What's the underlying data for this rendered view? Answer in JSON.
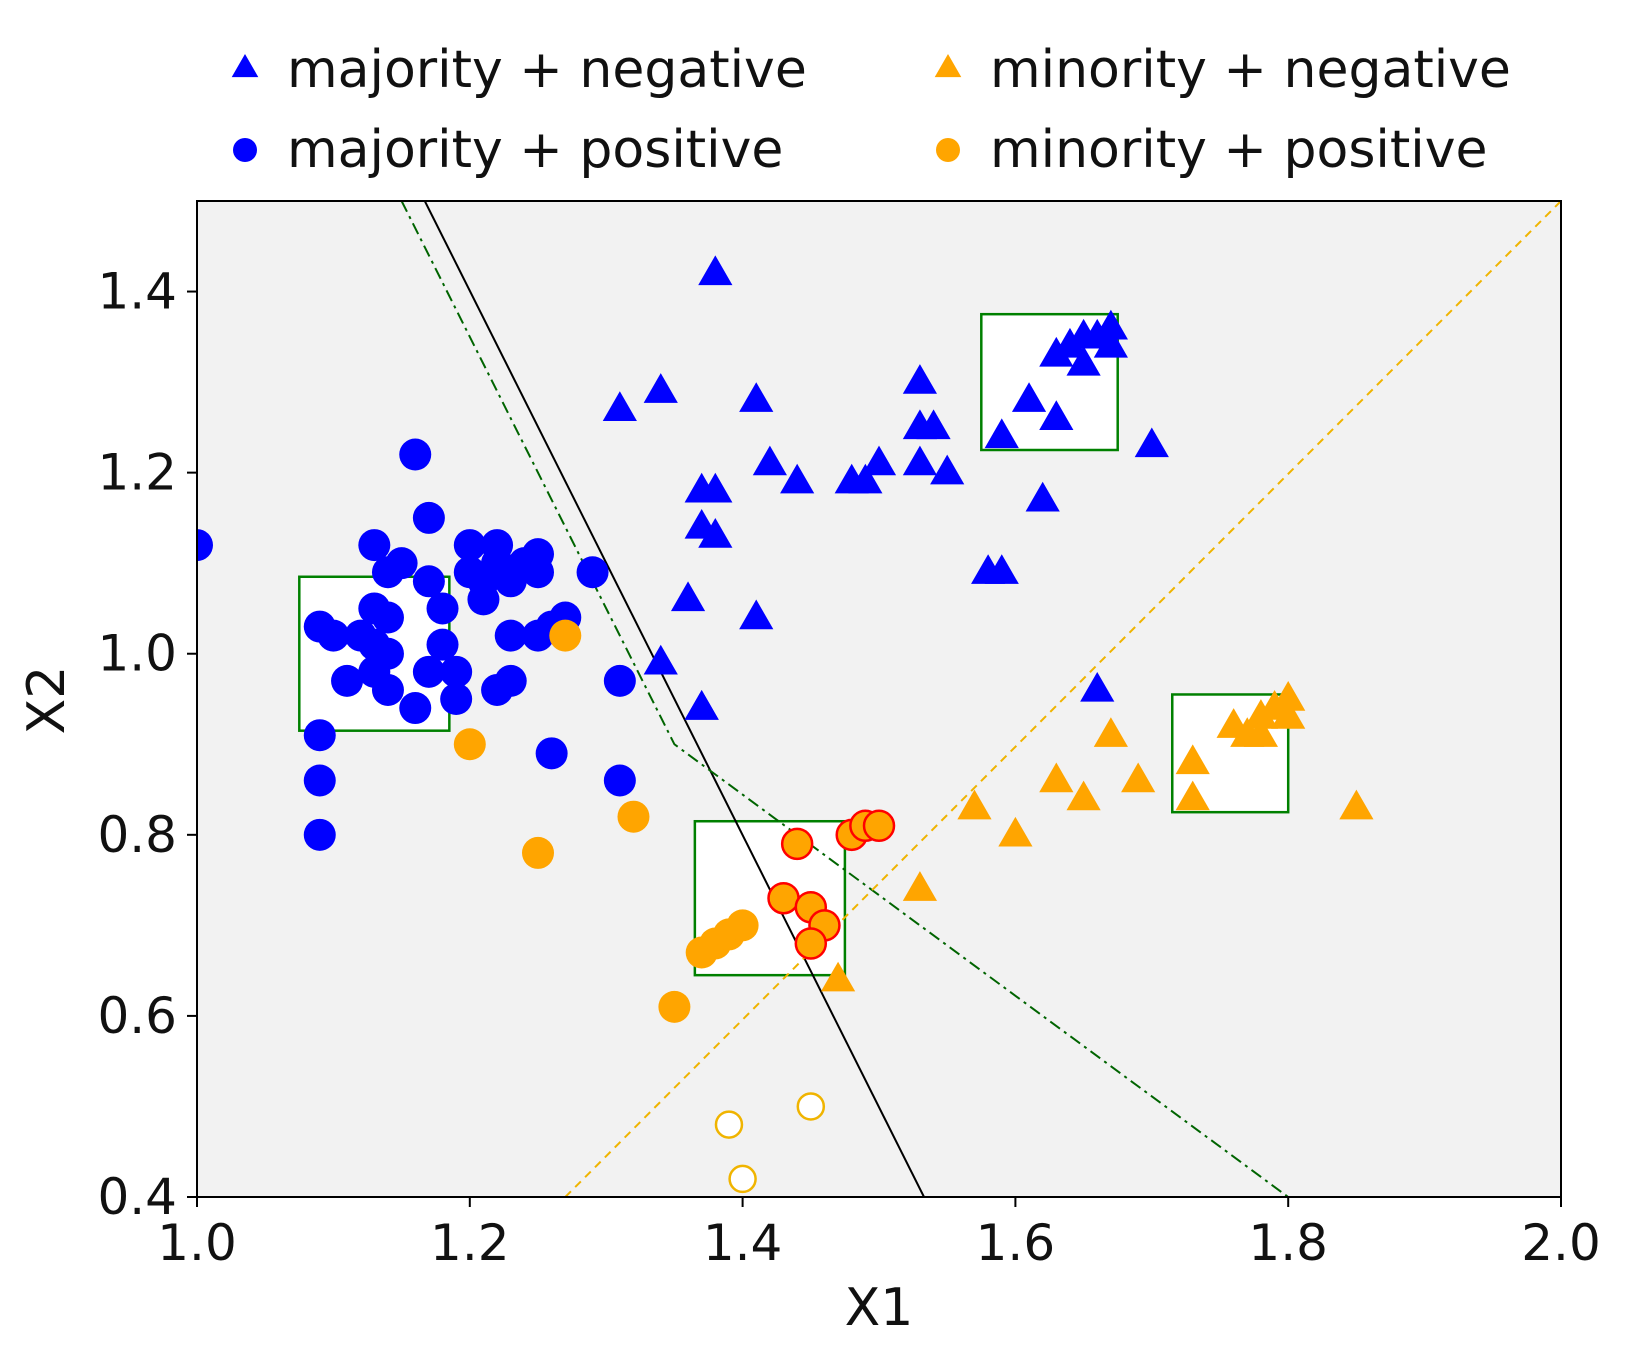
{
  "chart_data": {
    "type": "scatter",
    "title": "",
    "xlabel": "X1",
    "ylabel": "X2",
    "xlim": [
      1.0,
      2.0
    ],
    "ylim": [
      0.4,
      1.5
    ],
    "xticks": [
      "1.0",
      "1.2",
      "1.4",
      "1.6",
      "1.8",
      "2.0"
    ],
    "yticks": [
      "0.4",
      "0.6",
      "0.8",
      "1.0",
      "1.2",
      "1.4"
    ],
    "legend_position": "top",
    "colors": {
      "majority": "#0000ff",
      "minority": "#ffa500",
      "highlight_edge": "#ff0000",
      "box": "#008000",
      "solid_boundary": "#000000",
      "dashdot_boundary": "#006400",
      "dashed_boundary": "#f0b400",
      "plot_background": "#f2f2f2"
    },
    "series": [
      {
        "name": "majority + negative",
        "marker": "triangle",
        "color": "#0000ff",
        "points": [
          [
            1.38,
            1.42
          ],
          [
            1.31,
            1.27
          ],
          [
            1.34,
            1.29
          ],
          [
            1.41,
            1.28
          ],
          [
            1.42,
            1.21
          ],
          [
            1.44,
            1.19
          ],
          [
            1.37,
            1.18
          ],
          [
            1.38,
            1.18
          ],
          [
            1.37,
            1.14
          ],
          [
            1.38,
            1.13
          ],
          [
            1.36,
            1.06
          ],
          [
            1.41,
            1.04
          ],
          [
            1.34,
            0.99
          ],
          [
            1.37,
            0.94
          ],
          [
            1.37,
            0.94
          ],
          [
            1.48,
            1.19
          ],
          [
            1.49,
            1.19
          ],
          [
            1.5,
            1.21
          ],
          [
            1.53,
            1.3
          ],
          [
            1.53,
            1.25
          ],
          [
            1.54,
            1.25
          ],
          [
            1.53,
            1.21
          ],
          [
            1.55,
            1.2
          ],
          [
            1.59,
            1.24
          ],
          [
            1.61,
            1.28
          ],
          [
            1.63,
            1.26
          ],
          [
            1.62,
            1.17
          ],
          [
            1.58,
            1.09
          ],
          [
            1.59,
            1.09
          ],
          [
            1.63,
            1.33
          ],
          [
            1.64,
            1.34
          ],
          [
            1.65,
            1.35
          ],
          [
            1.66,
            1.35
          ],
          [
            1.67,
            1.34
          ],
          [
            1.67,
            1.36
          ],
          [
            1.65,
            1.32
          ],
          [
            1.7,
            1.23
          ],
          [
            1.66,
            0.96
          ]
        ]
      },
      {
        "name": "majority + positive",
        "marker": "circle",
        "color": "#0000ff",
        "points": [
          [
            1.0,
            1.12
          ],
          [
            1.16,
            1.22
          ],
          [
            1.17,
            1.15
          ],
          [
            1.13,
            1.12
          ],
          [
            1.14,
            1.09
          ],
          [
            1.15,
            1.1
          ],
          [
            1.17,
            1.08
          ],
          [
            1.18,
            1.05
          ],
          [
            1.09,
            1.03
          ],
          [
            1.1,
            1.02
          ],
          [
            1.12,
            1.02
          ],
          [
            1.13,
            1.05
          ],
          [
            1.14,
            1.04
          ],
          [
            1.13,
            1.01
          ],
          [
            1.14,
            1.0
          ],
          [
            1.11,
            0.97
          ],
          [
            1.13,
            0.98
          ],
          [
            1.14,
            0.96
          ],
          [
            1.18,
            1.01
          ],
          [
            1.19,
            0.98
          ],
          [
            1.17,
            0.98
          ],
          [
            1.19,
            0.95
          ],
          [
            1.16,
            0.94
          ],
          [
            1.09,
            0.91
          ],
          [
            1.09,
            0.86
          ],
          [
            1.09,
            0.8
          ],
          [
            1.2,
            1.12
          ],
          [
            1.22,
            1.12
          ],
          [
            1.2,
            1.09
          ],
          [
            1.21,
            1.08
          ],
          [
            1.21,
            1.06
          ],
          [
            1.22,
            1.1
          ],
          [
            1.23,
            1.08
          ],
          [
            1.24,
            1.1
          ],
          [
            1.25,
            1.11
          ],
          [
            1.25,
            1.09
          ],
          [
            1.23,
            1.02
          ],
          [
            1.25,
            1.02
          ],
          [
            1.26,
            1.03
          ],
          [
            1.27,
            1.04
          ],
          [
            1.29,
            1.09
          ],
          [
            1.22,
            0.96
          ],
          [
            1.23,
            0.97
          ],
          [
            1.31,
            0.97
          ],
          [
            1.26,
            0.89
          ],
          [
            1.31,
            0.86
          ]
        ]
      },
      {
        "name": "minority + negative",
        "marker": "triangle",
        "color": "#ffa500",
        "points": [
          [
            1.47,
            0.64
          ],
          [
            1.53,
            0.74
          ],
          [
            1.57,
            0.83
          ],
          [
            1.6,
            0.8
          ],
          [
            1.63,
            0.86
          ],
          [
            1.65,
            0.84
          ],
          [
            1.67,
            0.91
          ],
          [
            1.69,
            0.86
          ],
          [
            1.73,
            0.88
          ],
          [
            1.73,
            0.84
          ],
          [
            1.76,
            0.92
          ],
          [
            1.77,
            0.91
          ],
          [
            1.78,
            0.93
          ],
          [
            1.78,
            0.91
          ],
          [
            1.79,
            0.94
          ],
          [
            1.8,
            0.93
          ],
          [
            1.8,
            0.95
          ],
          [
            1.85,
            0.83
          ]
        ]
      },
      {
        "name": "minority + positive",
        "marker": "circle",
        "color": "#ffa500",
        "points": [
          [
            1.27,
            1.02
          ],
          [
            1.2,
            0.9
          ],
          [
            1.25,
            0.78
          ],
          [
            1.32,
            0.82
          ],
          [
            1.35,
            0.61
          ],
          [
            1.37,
            0.67
          ],
          [
            1.38,
            0.68
          ],
          [
            1.39,
            0.69
          ],
          [
            1.4,
            0.7
          ]
        ]
      }
    ],
    "highlighted_points": {
      "description": "minority + positive points with red edge",
      "fill": "#ffa500",
      "edge": "#ff0000",
      "points": [
        [
          1.44,
          0.79
        ],
        [
          1.48,
          0.8
        ],
        [
          1.49,
          0.81
        ],
        [
          1.5,
          0.81
        ],
        [
          1.43,
          0.73
        ],
        [
          1.45,
          0.72
        ],
        [
          1.46,
          0.7
        ],
        [
          1.45,
          0.68
        ]
      ]
    },
    "hollow_points": {
      "description": "orange hollow circles",
      "edge": "#f0b400",
      "points": [
        [
          1.39,
          0.48
        ],
        [
          1.45,
          0.5
        ],
        [
          1.4,
          0.42
        ]
      ]
    },
    "boxes": [
      {
        "x0": 1.075,
        "x1": 1.185,
        "y0": 0.915,
        "y1": 1.085
      },
      {
        "x0": 1.365,
        "x1": 1.475,
        "y0": 0.645,
        "y1": 0.815
      },
      {
        "x0": 1.575,
        "x1": 1.675,
        "y0": 1.225,
        "y1": 1.375
      },
      {
        "x0": 1.715,
        "x1": 1.8,
        "y0": 0.825,
        "y1": 0.955
      }
    ],
    "boundaries": [
      {
        "style": "solid",
        "color": "#000000",
        "points": [
          [
            1.167,
            1.5
          ],
          [
            1.533,
            0.4
          ]
        ]
      },
      {
        "style": "dashdot",
        "color": "#006400",
        "points": [
          [
            1.15,
            1.5
          ],
          [
            1.35,
            0.9
          ],
          [
            1.8,
            0.4
          ]
        ]
      },
      {
        "style": "dashed",
        "color": "#f0b400",
        "points": [
          [
            1.27,
            0.4
          ],
          [
            2.0,
            1.5
          ]
        ]
      }
    ],
    "legend": [
      {
        "label": "majority + negative",
        "marker": "triangle",
        "color": "#0000ff"
      },
      {
        "label": "minority + negative",
        "marker": "triangle",
        "color": "#ffa500"
      },
      {
        "label": "majority + positive",
        "marker": "circle",
        "color": "#0000ff"
      },
      {
        "label": "minority + positive",
        "marker": "circle",
        "color": "#ffa500"
      }
    ]
  }
}
